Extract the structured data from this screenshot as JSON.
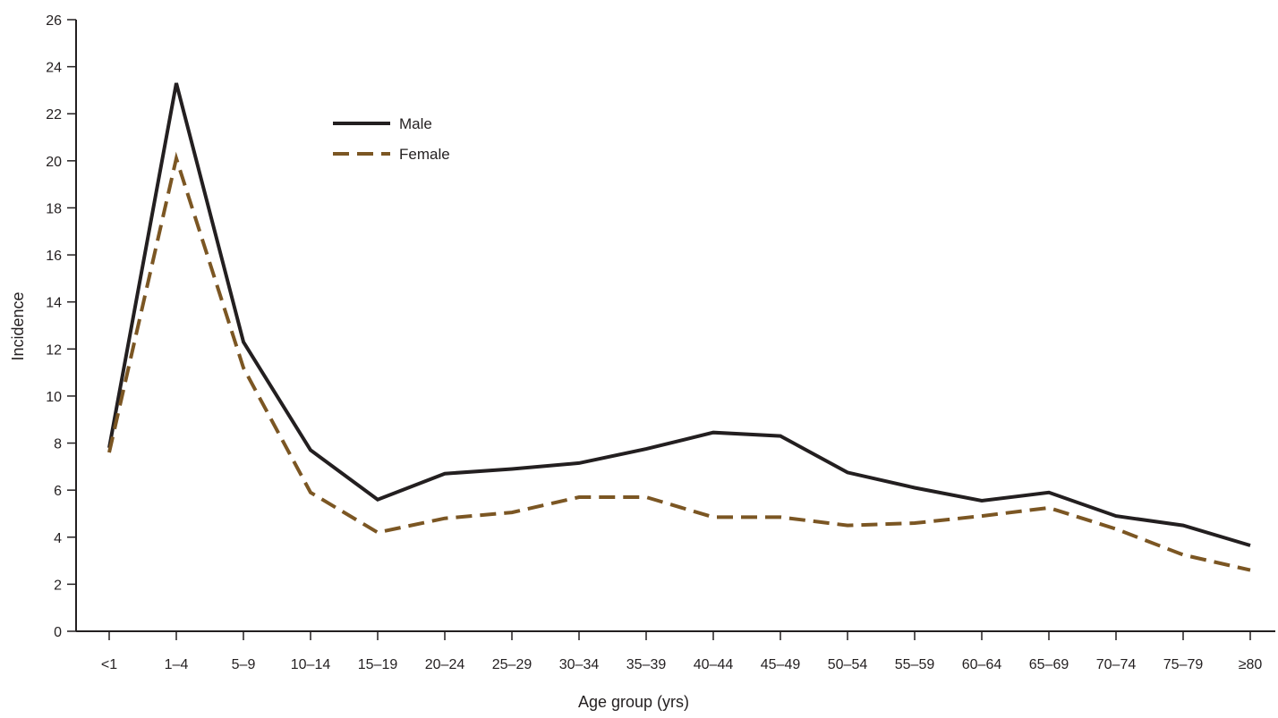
{
  "chart_data": {
    "type": "line",
    "title": "",
    "xlabel": "Age group (yrs)",
    "ylabel": "Incidence",
    "ylim": [
      0,
      26
    ],
    "yticks": [
      0,
      2,
      4,
      6,
      8,
      10,
      12,
      14,
      16,
      18,
      20,
      22,
      24,
      26
    ],
    "ytick_labels": [
      "0",
      "2",
      "4",
      "6",
      "8",
      "10",
      "12",
      "14",
      "16",
      "18",
      "20",
      "22",
      "24",
      "26"
    ],
    "grid": false,
    "legend_position": "top-left",
    "categories": [
      "<1",
      "1–4",
      "5–9",
      "10–14",
      "15–19",
      "20–24",
      "25–29",
      "30–34",
      "35–39",
      "40–44",
      "45–49",
      "50–54",
      "55–59",
      "60–64",
      "65–69",
      "70–74",
      "75–79",
      "≥80"
    ],
    "series": [
      {
        "name": "Male",
        "color": "#231f20",
        "style": "solid",
        "values": [
          7.8,
          23.3,
          12.3,
          7.7,
          5.6,
          6.7,
          6.9,
          7.15,
          7.75,
          8.45,
          8.3,
          6.75,
          6.1,
          5.55,
          5.9,
          4.9,
          4.5,
          3.65
        ]
      },
      {
        "name": "Female",
        "color": "#7b5623",
        "style": "dashed",
        "values": [
          7.6,
          20.1,
          11.2,
          5.9,
          4.2,
          4.8,
          5.05,
          5.7,
          5.7,
          4.85,
          4.85,
          4.5,
          4.6,
          4.9,
          5.25,
          4.35,
          3.25,
          2.6
        ]
      }
    ]
  }
}
